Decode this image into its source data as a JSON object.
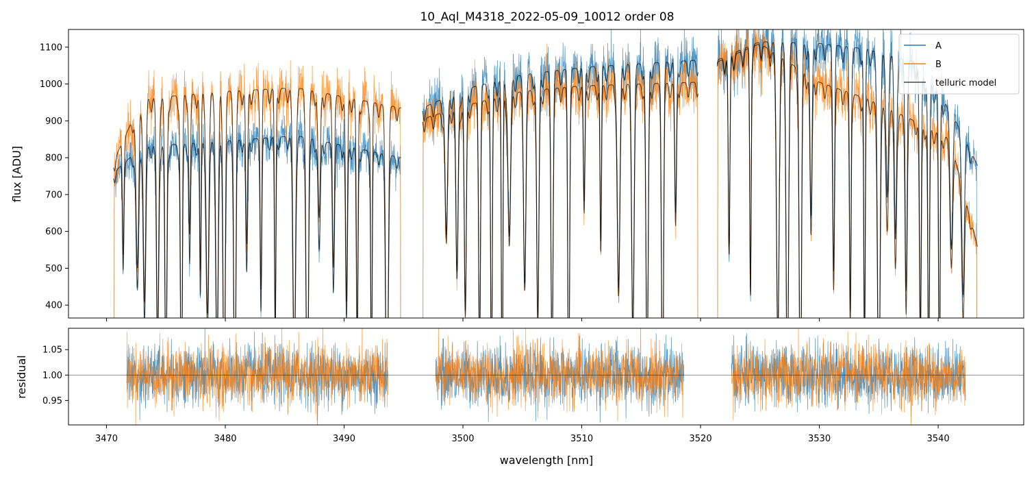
{
  "chart_data": [
    {
      "type": "line",
      "title": "10_Aql_M4318_2022-05-09_10012  order 08",
      "xlabel": "",
      "ylabel": "flux [ADU]",
      "xlim": [
        3466.8,
        3547.2
      ],
      "ylim": [
        365,
        1148
      ],
      "yticks": [
        400,
        500,
        600,
        700,
        800,
        900,
        1000,
        1100
      ],
      "xticks": [
        3470,
        3480,
        3490,
        3500,
        3510,
        3520,
        3530,
        3540
      ],
      "legend": {
        "location": "top-right",
        "entries": [
          "A",
          "B",
          "telluric model"
        ]
      },
      "segments_nm": [
        [
          3470.6,
          3494.8
        ],
        [
          3496.6,
          3519.8
        ],
        [
          3521.4,
          3543.3
        ]
      ],
      "series": [
        {
          "name": "A",
          "color": "#1f77b4",
          "continuum": [
            {
              "x": 3470.6,
              "y": 760
            },
            {
              "x": 3473,
              "y": 830
            },
            {
              "x": 3480,
              "y": 845
            },
            {
              "x": 3486,
              "y": 860
            },
            {
              "x": 3494.8,
              "y": 800
            },
            {
              "x": 3496.6,
              "y": 935
            },
            {
              "x": 3500,
              "y": 985
            },
            {
              "x": 3505,
              "y": 1025
            },
            {
              "x": 3510,
              "y": 1045
            },
            {
              "x": 3519.8,
              "y": 1065
            },
            {
              "x": 3521.4,
              "y": 1065
            },
            {
              "x": 3525,
              "y": 1115
            },
            {
              "x": 3530,
              "y": 1110
            },
            {
              "x": 3534,
              "y": 1095
            },
            {
              "x": 3538,
              "y": 1060
            },
            {
              "x": 3541,
              "y": 930
            },
            {
              "x": 3543.3,
              "y": 780
            }
          ]
        },
        {
          "name": "B",
          "color": "#ff7f0e",
          "continuum": [
            {
              "x": 3470.6,
              "y": 790
            },
            {
              "x": 3473,
              "y": 960
            },
            {
              "x": 3480,
              "y": 980
            },
            {
              "x": 3486,
              "y": 990
            },
            {
              "x": 3494.8,
              "y": 935
            },
            {
              "x": 3496.6,
              "y": 905
            },
            {
              "x": 3500,
              "y": 940
            },
            {
              "x": 3505,
              "y": 980
            },
            {
              "x": 3510,
              "y": 995
            },
            {
              "x": 3519.8,
              "y": 1005
            },
            {
              "x": 3521.4,
              "y": 1060
            },
            {
              "x": 3525,
              "y": 1110
            },
            {
              "x": 3530,
              "y": 1005
            },
            {
              "x": 3534,
              "y": 960
            },
            {
              "x": 3538,
              "y": 900
            },
            {
              "x": 3541,
              "y": 850
            },
            {
              "x": 3543.3,
              "y": 560
            }
          ]
        },
        {
          "name": "telluric model",
          "color": "#000000"
        }
      ],
      "absorption_lines_nm": [
        3471.4,
        3472.6,
        3473.2,
        3474.3,
        3475.0,
        3476.3,
        3477.0,
        3477.9,
        3478.5,
        3479.3,
        3479.9,
        3480.8,
        3481.8,
        3483.0,
        3484.2,
        3485.8,
        3486.9,
        3487.9,
        3489.1,
        3490.2,
        3491.1,
        3492.3,
        3493.6,
        3498.6,
        3499.5,
        3500.2,
        3501.4,
        3502.4,
        3503.3,
        3503.9,
        3505.2,
        3506.3,
        3507.5,
        3508.9,
        3510.2,
        3511.6,
        3513.1,
        3514.3,
        3515.5,
        3516.8,
        3517.9,
        3522.4,
        3524.2,
        3526.5,
        3527.3,
        3528.4,
        3529.3,
        3531.2,
        3532.6,
        3533.8,
        3535.0,
        3535.7,
        3536.4,
        3537.3,
        3538.5,
        3539.2,
        3540.1,
        3541.1,
        3542.1
      ]
    },
    {
      "type": "line",
      "title": "",
      "xlabel": "wavelength [nm]",
      "ylabel": "residual",
      "xlim": [
        3466.8,
        3547.2
      ],
      "ylim": [
        0.902,
        1.092
      ],
      "yticks": [
        0.95,
        1.0,
        1.05
      ],
      "ytick_labels": [
        "0.95",
        "1.00",
        "1.05"
      ],
      "xticks": [
        3470,
        3480,
        3490,
        3500,
        3510,
        3520,
        3530,
        3540
      ],
      "reference_line": 1.0,
      "segments_nm": [
        [
          3471.7,
          3493.7
        ],
        [
          3497.7,
          3518.6
        ],
        [
          3522.6,
          3542.3
        ]
      ],
      "series": [
        {
          "name": "A",
          "color": "#1f77b4",
          "mean": 1.0,
          "spread": 0.03
        },
        {
          "name": "B",
          "color": "#ff7f0e",
          "mean": 1.0,
          "spread": 0.03
        }
      ]
    }
  ]
}
